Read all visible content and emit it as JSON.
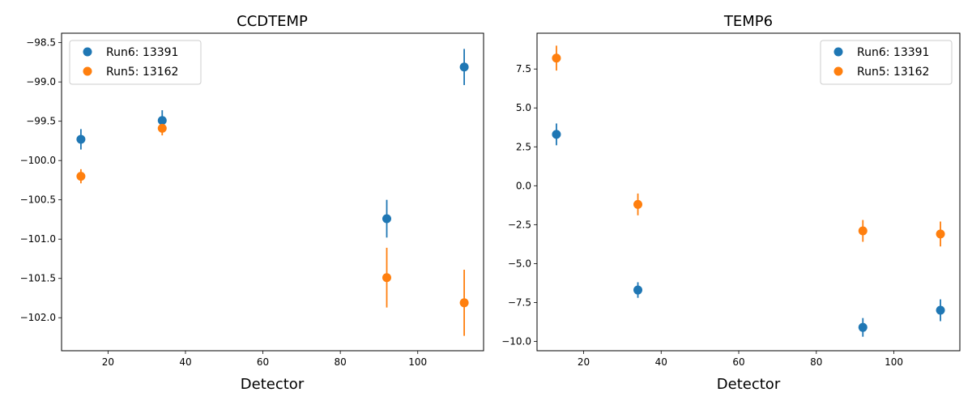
{
  "chart_data": [
    {
      "type": "scatter",
      "title": "CCDTEMP",
      "xlabel": "Detector",
      "ylabel": "",
      "xlim": [
        8,
        117
      ],
      "ylim": [
        -102.42,
        -98.38
      ],
      "xticks": [
        20,
        40,
        60,
        80,
        100
      ],
      "yticks": [
        -98.5,
        -99.0,
        -99.5,
        -100.0,
        -100.5,
        -101.0,
        -101.5,
        -102.0
      ],
      "xtick_labels": [
        "20",
        "40",
        "60",
        "80",
        "100"
      ],
      "ytick_labels": [
        "−98.5",
        "−99.0",
        "−99.5",
        "−100.0",
        "−100.5",
        "−101.0",
        "−101.5",
        "−102.0"
      ],
      "legend_position": "upper-left",
      "series": [
        {
          "name": "Run6: 13391",
          "color": "#1f77b4",
          "x": [
            13,
            34,
            92,
            112
          ],
          "y": [
            -99.73,
            -99.49,
            -100.74,
            -98.81
          ],
          "yerr": [
            0.13,
            0.13,
            0.24,
            0.23
          ]
        },
        {
          "name": "Run5: 13162",
          "color": "#ff7f0e",
          "x": [
            13,
            34,
            92,
            112
          ],
          "y": [
            -100.2,
            -99.59,
            -101.49,
            -101.81
          ],
          "yerr": [
            0.09,
            0.09,
            0.38,
            0.42
          ]
        }
      ]
    },
    {
      "type": "scatter",
      "title": "TEMP6",
      "xlabel": "Detector",
      "ylabel": "",
      "xlim": [
        8,
        117
      ],
      "ylim": [
        -10.6,
        9.8
      ],
      "xticks": [
        20,
        40,
        60,
        80,
        100
      ],
      "yticks": [
        7.5,
        5.0,
        2.5,
        0.0,
        -2.5,
        -5.0,
        -7.5,
        -10.0
      ],
      "xtick_labels": [
        "20",
        "40",
        "60",
        "80",
        "100"
      ],
      "ytick_labels": [
        "7.5",
        "5.0",
        "2.5",
        "0.0",
        "−2.5",
        "−5.0",
        "−7.5",
        "−10.0"
      ],
      "legend_position": "upper-right",
      "series": [
        {
          "name": "Run6: 13391",
          "color": "#1f77b4",
          "x": [
            13,
            34,
            92,
            112
          ],
          "y": [
            3.3,
            -6.7,
            -9.1,
            -8.0
          ],
          "yerr": [
            0.7,
            0.5,
            0.6,
            0.7
          ]
        },
        {
          "name": "Run5: 13162",
          "color": "#ff7f0e",
          "x": [
            13,
            34,
            92,
            112
          ],
          "y": [
            8.2,
            -1.2,
            -2.9,
            -3.1
          ],
          "yerr": [
            0.8,
            0.7,
            0.7,
            0.8
          ]
        }
      ]
    }
  ]
}
